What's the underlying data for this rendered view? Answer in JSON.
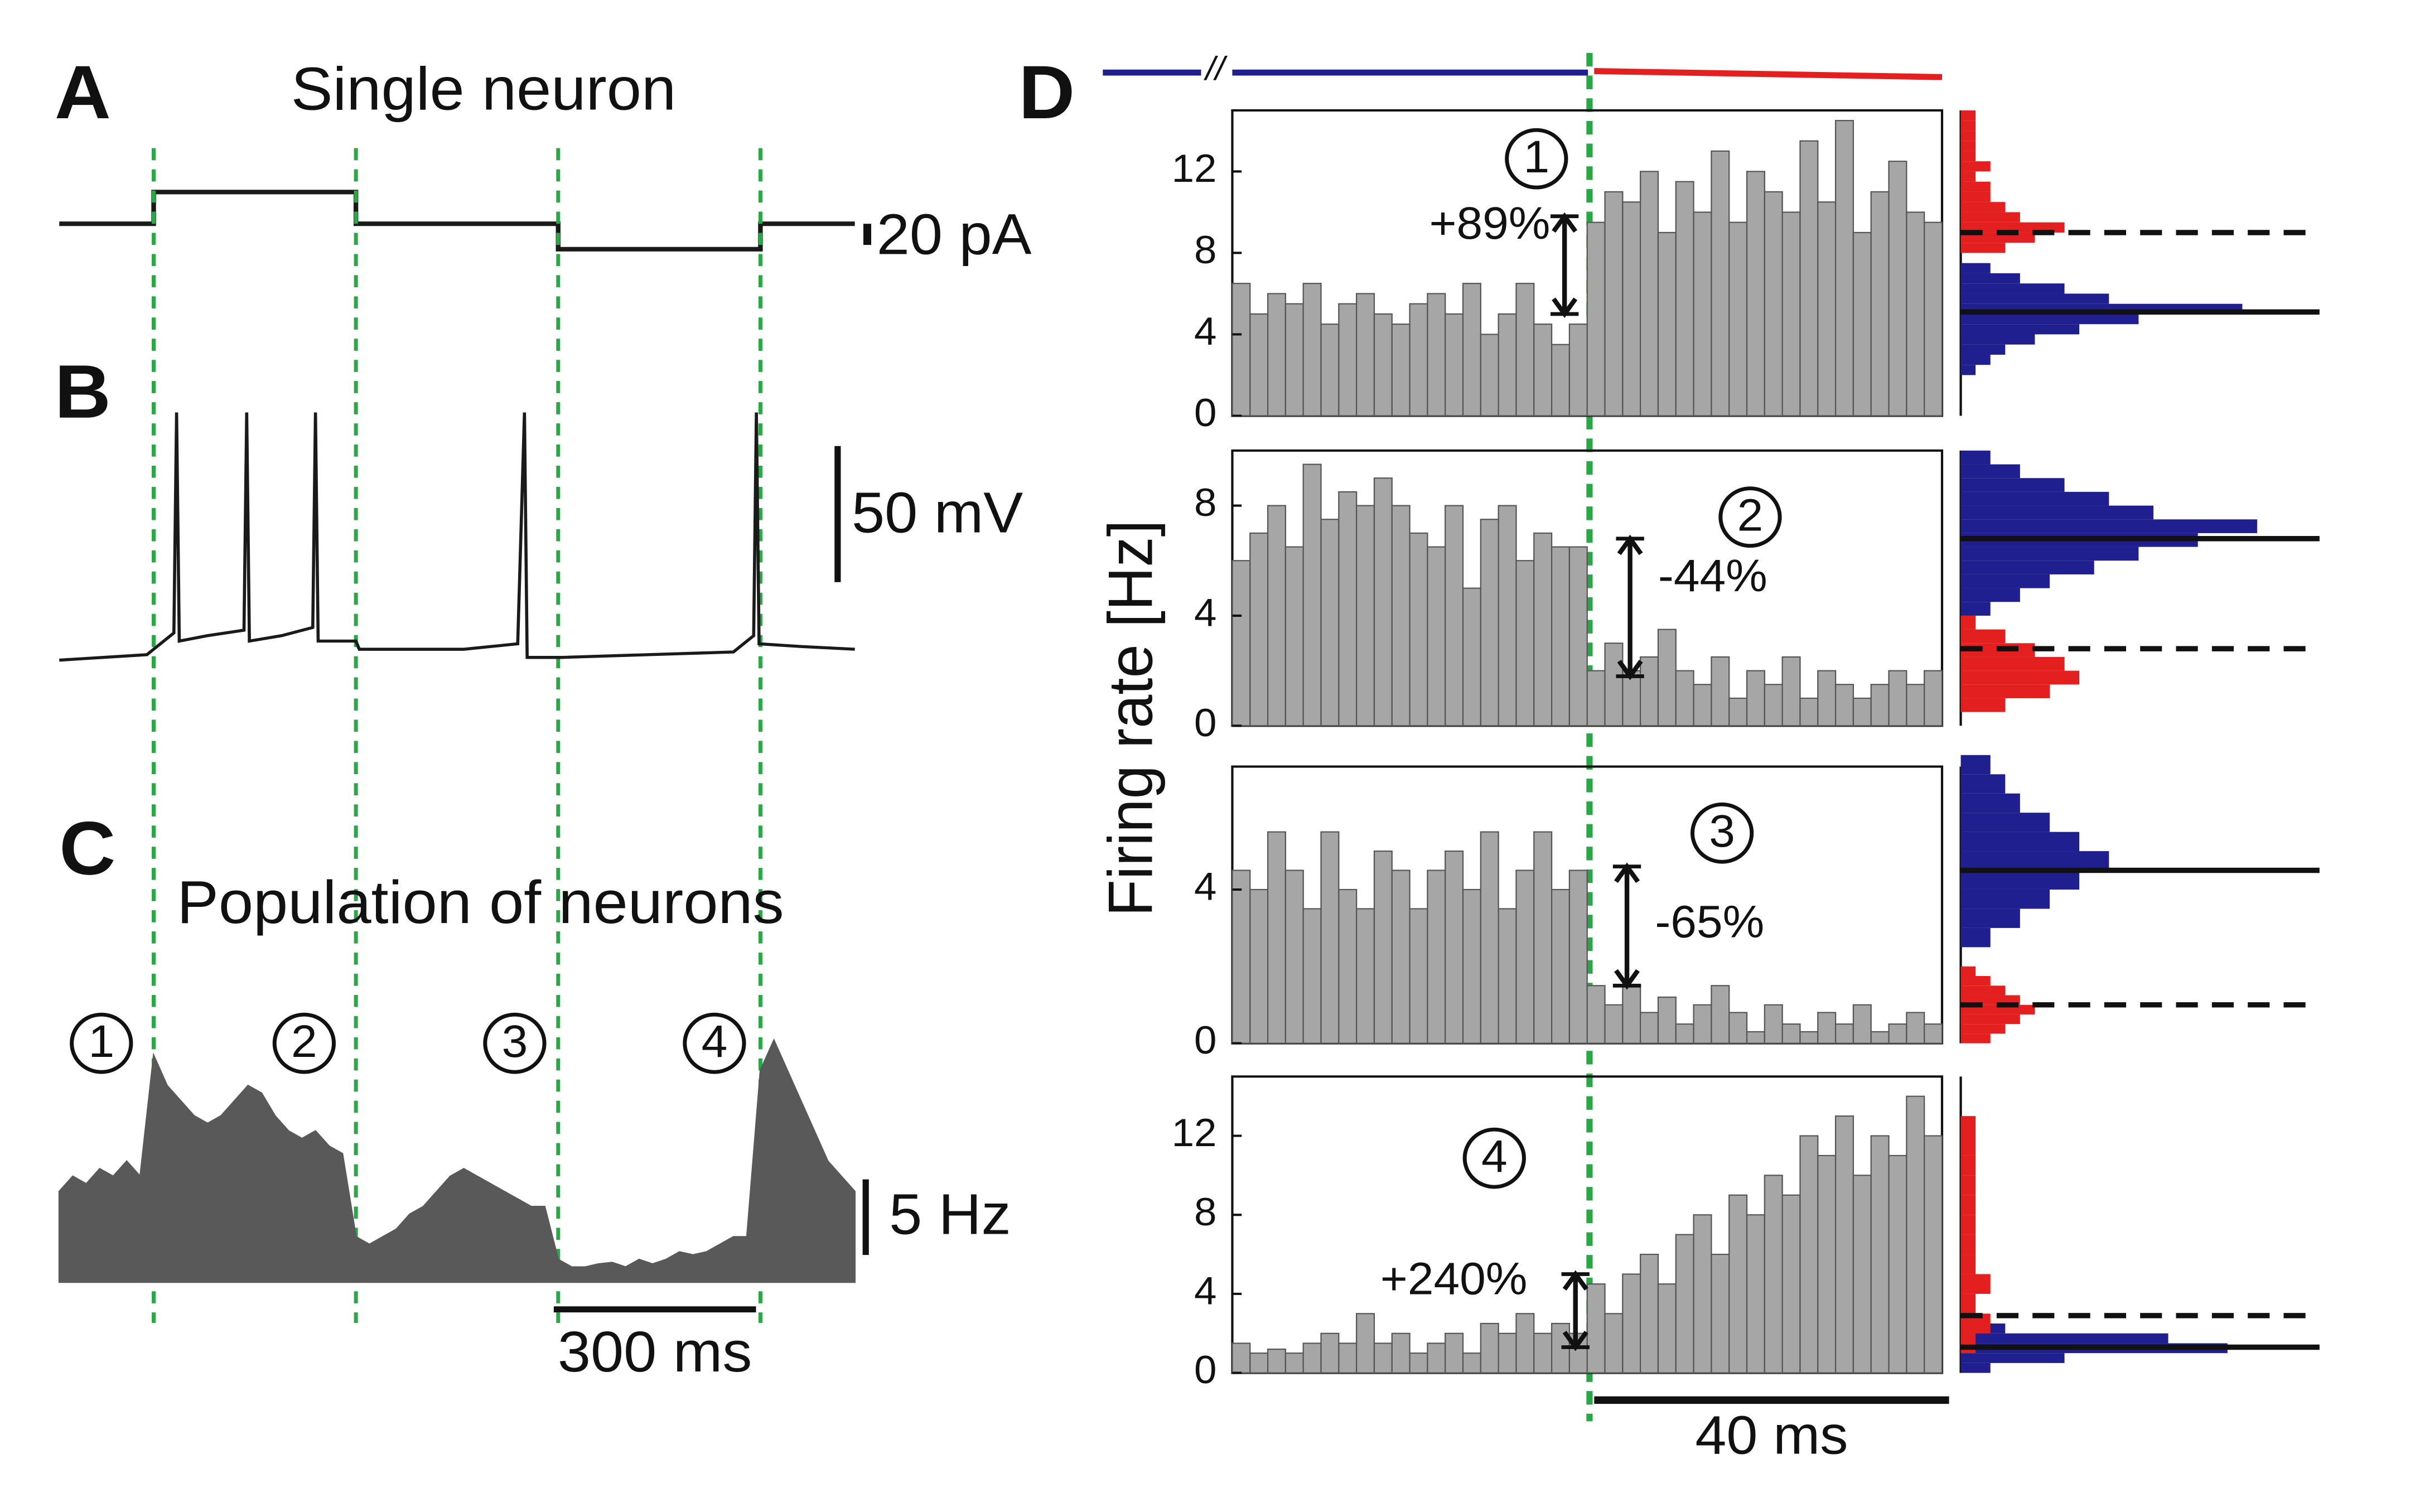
{
  "chart_data": [
    {
      "type": "line",
      "label": "A",
      "title": "Single neuron",
      "x": [
        0,
        140,
        140,
        440,
        440,
        740,
        740,
        1040,
        1040,
        1180
      ],
      "values": [
        0,
        0,
        30,
        30,
        0,
        0,
        -24,
        -24,
        0,
        0
      ],
      "xlim": [
        0,
        1180
      ],
      "ylim": [
        -40,
        40
      ],
      "color": "#1a1a1a",
      "scale_bar": {
        "value": 20,
        "label": "20 pA"
      },
      "epoch_bounds": [
        140,
        440,
        740,
        1040
      ],
      "epoch_color": "#2aa845"
    },
    {
      "type": "line",
      "label": "B",
      "x": [
        0,
        130,
        140,
        170,
        174,
        178,
        220,
        274,
        278,
        282,
        330,
        376,
        380,
        384,
        440,
        445,
        600,
        680,
        690,
        694,
        745,
        1000,
        1030,
        1034,
        1038,
        1100,
        1180
      ],
      "values": [
        -67,
        -65,
        -63,
        -57,
        24,
        -60,
        -58,
        -56,
        24,
        -60,
        -58,
        -55,
        24,
        -60,
        -60,
        -63,
        -63,
        -61,
        24,
        -66,
        -66,
        -64,
        -58,
        24,
        -61,
        -62,
        -63
      ],
      "xlim": [
        0,
        1180
      ],
      "ylim": [
        -80,
        30
      ],
      "color": "#1a1a1a",
      "scale_bar": {
        "value": 50,
        "label": "50 mV"
      }
    },
    {
      "type": "area",
      "label": "C",
      "title": "Population of neurons",
      "x": [
        0,
        20,
        40,
        60,
        80,
        100,
        120,
        140,
        160,
        180,
        200,
        220,
        240,
        260,
        280,
        300,
        320,
        340,
        360,
        380,
        400,
        420,
        440,
        460,
        480,
        500,
        520,
        540,
        560,
        580,
        600,
        620,
        640,
        660,
        680,
        700,
        720,
        740,
        760,
        780,
        800,
        820,
        840,
        860,
        880,
        900,
        920,
        940,
        960,
        980,
        1000,
        1020,
        1040,
        1060,
        1080,
        1100,
        1120,
        1140,
        1160,
        1180
      ],
      "values": [
        6,
        7,
        6.5,
        7.5,
        7,
        8,
        7,
        15,
        13,
        12,
        11,
        10.5,
        11,
        12,
        13,
        12.5,
        11,
        10,
        9.5,
        10,
        9,
        8.5,
        3,
        2.5,
        3,
        3.5,
        4.5,
        5,
        6,
        7,
        7.5,
        7,
        6.5,
        6,
        5.5,
        5,
        5,
        1.5,
        1,
        1,
        1.2,
        1.3,
        1,
        1.5,
        1.2,
        1.5,
        2,
        1.8,
        2,
        2.5,
        3,
        3,
        14,
        16,
        14,
        12,
        10,
        8,
        7,
        6
      ],
      "xlim": [
        0,
        1180
      ],
      "ylim": [
        0,
        16
      ],
      "color": "#595959",
      "epoch_labels": [
        "1",
        "2",
        "3",
        "4"
      ],
      "scale_bar": {
        "value": 5,
        "label": "5 Hz"
      },
      "time_bar": {
        "value": 300,
        "label": "300 ms"
      }
    },
    {
      "type": "histogram",
      "label": "D",
      "ylabel": "Firing rate  [Hz]",
      "epoch_label": "1",
      "annotation": "+89%",
      "change_arrow": [
        5,
        9.8
      ],
      "bins": [
        -40,
        -38,
        -36,
        -34,
        -32,
        -30,
        -28,
        -26,
        -24,
        -22,
        -20,
        -18,
        -16,
        -14,
        -12,
        -10,
        -8,
        -6,
        -4,
        -2,
        0,
        2,
        4,
        6,
        8,
        10,
        12,
        14,
        16,
        18,
        20,
        22,
        24,
        26,
        28,
        30,
        32,
        34,
        36,
        38,
        40
      ],
      "values": [
        6.5,
        5,
        6,
        5.5,
        6.5,
        4.5,
        5.5,
        6,
        5,
        4.5,
        5.5,
        6,
        5,
        6.5,
        4,
        5,
        6.5,
        4.5,
        3.5,
        4.5,
        9.5,
        11,
        10.5,
        12,
        9,
        11.5,
        10,
        13,
        9.5,
        12,
        11,
        10,
        13.5,
        10.5,
        14.5,
        9,
        11,
        12.5,
        10,
        9.5
      ],
      "ylim": [
        0,
        15
      ],
      "yticks": [
        0,
        4,
        8,
        12
      ],
      "color": "#a6a6a6",
      "distributions": [
        {
          "color": "#1f1f8f",
          "bins": [
            2,
            2.5,
            3,
            3.5,
            4,
            4.5,
            5,
            5.5,
            6,
            6.5,
            7,
            7.5
          ],
          "values": [
            1,
            2,
            3,
            5,
            8,
            12,
            19,
            10,
            7,
            4,
            2
          ]
        },
        {
          "color": "#e3201f",
          "bins": [
            8,
            8.5,
            9,
            9.5,
            10,
            10.5,
            11,
            11.5,
            12,
            12.5,
            13,
            13.5,
            14,
            14.5,
            15
          ],
          "values": [
            3,
            5,
            7,
            4,
            3,
            2,
            2,
            1,
            2,
            1,
            1,
            1,
            1,
            1
          ]
        }
      ],
      "means": [
        5.1,
        9.0
      ]
    },
    {
      "type": "histogram",
      "epoch_label": "2",
      "annotation": "-44%",
      "change_arrow": [
        1.8,
        6.8
      ],
      "bins": [
        -40,
        -38,
        -36,
        -34,
        -32,
        -30,
        -28,
        -26,
        -24,
        -22,
        -20,
        -18,
        -16,
        -14,
        -12,
        -10,
        -8,
        -6,
        -4,
        -2,
        0,
        2,
        4,
        6,
        8,
        10,
        12,
        14,
        16,
        18,
        20,
        22,
        24,
        26,
        28,
        30,
        32,
        34,
        36,
        38,
        40
      ],
      "values": [
        6,
        7,
        8,
        6.5,
        9.5,
        7.5,
        8.5,
        8,
        9,
        8,
        7,
        6.5,
        8,
        5,
        7.5,
        8,
        6,
        7,
        6.5,
        6.5,
        2,
        3,
        2,
        2.5,
        3.5,
        2,
        1.5,
        2.5,
        1,
        2,
        1.5,
        2.5,
        1,
        2,
        1.5,
        1,
        1.5,
        2,
        1.5,
        2
      ],
      "ylim": [
        0,
        10
      ],
      "yticks": [
        0,
        4,
        8
      ],
      "color": "#a6a6a6",
      "distributions": [
        {
          "color": "#1f1f8f",
          "bins": [
            3.5,
            4,
            4.5,
            5,
            5.5,
            6,
            6.5,
            7,
            7.5,
            8,
            8.5,
            9,
            9.5,
            10
          ],
          "values": [
            1,
            2,
            4,
            6,
            9,
            12,
            16,
            20,
            13,
            10,
            7,
            4,
            2
          ]
        },
        {
          "color": "#e3201f",
          "bins": [
            0.5,
            1,
            1.5,
            2,
            2.5,
            3,
            3.5,
            4
          ],
          "values": [
            3,
            6,
            8,
            7,
            5,
            3,
            1
          ]
        }
      ],
      "means": [
        6.8,
        2.8
      ]
    },
    {
      "type": "histogram",
      "epoch_label": "3",
      "annotation": "-65%",
      "change_arrow": [
        1.5,
        4.6
      ],
      "bins": [
        -40,
        -38,
        -36,
        -34,
        -32,
        -30,
        -28,
        -26,
        -24,
        -22,
        -20,
        -18,
        -16,
        -14,
        -12,
        -10,
        -8,
        -6,
        -4,
        -2,
        0,
        2,
        4,
        6,
        8,
        10,
        12,
        14,
        16,
        18,
        20,
        22,
        24,
        26,
        28,
        30,
        32,
        34,
        36,
        38,
        40
      ],
      "values": [
        4.5,
        4,
        5.5,
        4.5,
        3.5,
        5.5,
        4,
        3.5,
        5,
        4.5,
        3.5,
        4.5,
        5,
        4,
        5.5,
        3.5,
        4.5,
        5.5,
        4,
        4.5,
        1.5,
        1,
        1.5,
        0.8,
        1.2,
        0.5,
        1,
        1.5,
        0.8,
        0.3,
        1,
        0.5,
        0.3,
        0.8,
        0.5,
        1,
        0.3,
        0.5,
        0.8,
        0.5
      ],
      "ylim": [
        0,
        7.2
      ],
      "yticks": [
        0,
        4
      ],
      "color": "#a6a6a6",
      "distributions": [
        {
          "color": "#1f1f8f",
          "bins": [
            2.5,
            3,
            3.5,
            4,
            4.5,
            5,
            5.5,
            6,
            6.5,
            7,
            7.5
          ],
          "values": [
            2,
            4,
            6,
            8,
            10,
            8,
            6,
            4,
            3,
            2
          ]
        },
        {
          "color": "#e3201f",
          "bins": [
            0,
            0.25,
            0.5,
            0.75,
            1,
            1.25,
            1.5,
            1.75,
            2
          ],
          "values": [
            2,
            3,
            4,
            5,
            4,
            3,
            2,
            1
          ]
        }
      ],
      "means": [
        4.5,
        1.0
      ]
    },
    {
      "type": "histogram",
      "epoch_label": "4",
      "annotation": "+240%",
      "change_arrow": [
        1.3,
        5
      ],
      "bins": [
        -40,
        -38,
        -36,
        -34,
        -32,
        -30,
        -28,
        -26,
        -24,
        -22,
        -20,
        -18,
        -16,
        -14,
        -12,
        -10,
        -8,
        -6,
        -4,
        -2,
        0,
        2,
        4,
        6,
        8,
        10,
        12,
        14,
        16,
        18,
        20,
        22,
        24,
        26,
        28,
        30,
        32,
        34,
        36,
        38,
        40
      ],
      "values": [
        1.5,
        1,
        1.2,
        1,
        1.5,
        2,
        1.5,
        3,
        1.5,
        2,
        1,
        1.5,
        2,
        1,
        2.5,
        2,
        3,
        2,
        2.5,
        2,
        4.5,
        3,
        5,
        6,
        4.5,
        7,
        8,
        6,
        9,
        8,
        10,
        9,
        12,
        11,
        13,
        10,
        12,
        11,
        14,
        12
      ],
      "ylim": [
        0,
        15
      ],
      "yticks": [
        0,
        4,
        8,
        12
      ],
      "color": "#a6a6a6",
      "distributions": [
        {
          "color": "#1f1f8f",
          "bins": [
            0,
            0.5,
            1,
            1.5,
            2,
            2.5,
            3
          ],
          "values": [
            2,
            7,
            18,
            14,
            3,
            1
          ]
        },
        {
          "color": "#e3201f",
          "bins": [
            1,
            2,
            3,
            4,
            5,
            6,
            7,
            8,
            9,
            10,
            11,
            12,
            13
          ],
          "values": [
            1,
            2,
            1,
            2,
            1,
            1,
            1,
            1,
            1,
            1,
            1,
            1
          ]
        }
      ],
      "means": [
        1.3,
        2.9
      ],
      "time_bar": {
        "value": 40,
        "label": "40 ms"
      }
    }
  ]
}
